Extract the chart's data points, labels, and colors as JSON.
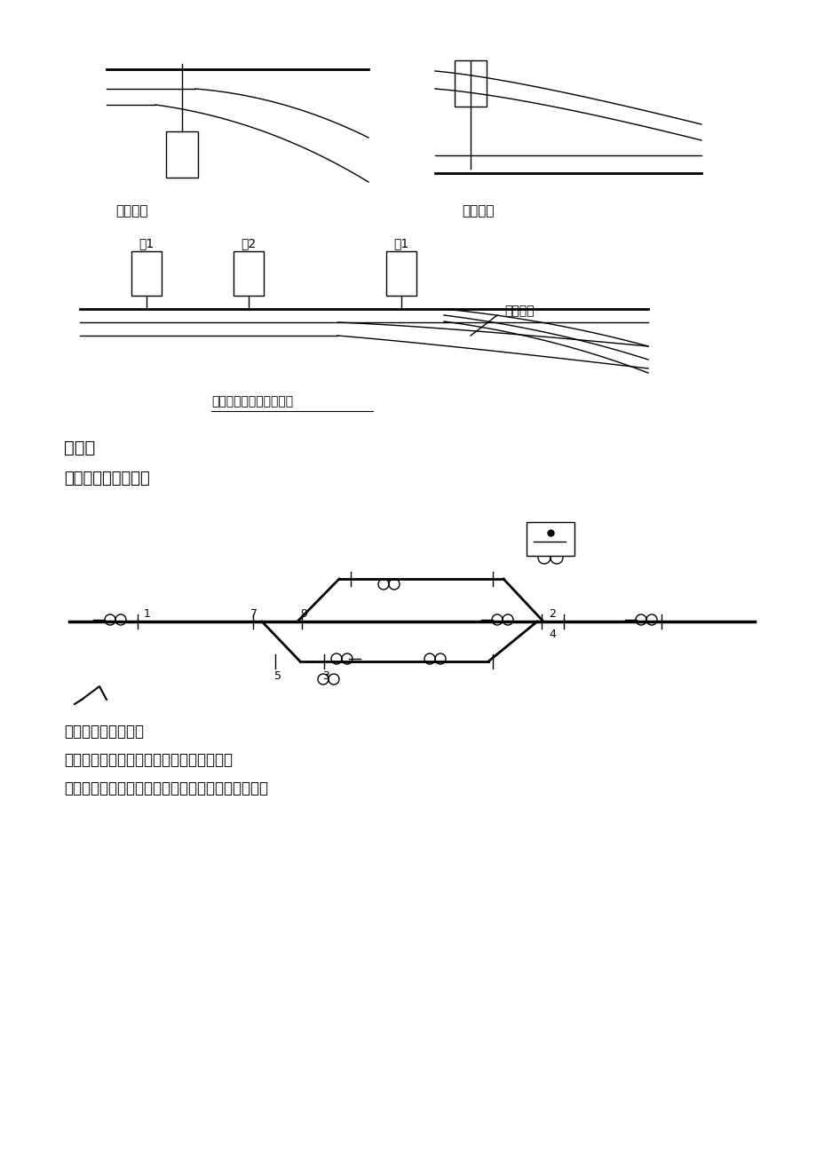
{
  "bg_color": "#ffffff",
  "text_color": "#000000",
  "title1": "右开道岔",
  "title2": "左开道岔",
  "label_jian1": "尖1",
  "label_jian2": "尖2",
  "label_xin1": "心1",
  "label_kedong": "可动心轨",
  "caption": "提速道岔转换牵引示意图",
  "section1": "平面图",
  "section2": "站场平面设备布置图",
  "text1": "平面图上的信号设备",
  "text2": "从图中可以看出：室外设备间的直线距离；",
  "text3": "绝缘节位置，信号机的数量、类型及机构灯位结构；"
}
